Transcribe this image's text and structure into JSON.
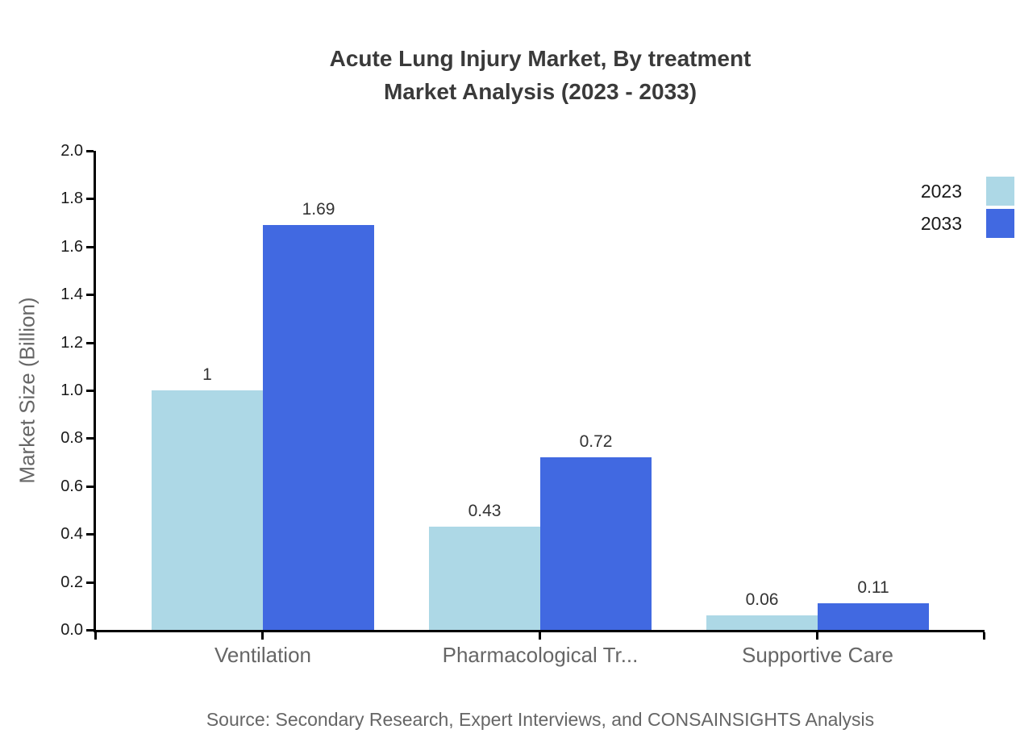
{
  "title": {
    "line1": "Acute Lung Injury Market, By treatment",
    "line2": "Market Analysis (2023 - 2033)"
  },
  "chart_data": {
    "type": "bar",
    "title": "Acute Lung Injury Market, By treatment Market Analysis (2023 - 2033)",
    "categories": [
      "Ventilation",
      "Pharmacological Tr...",
      "Supportive Care"
    ],
    "series": [
      {
        "name": "2023",
        "color": "#ADD8E6",
        "values": [
          1,
          0.43,
          0.06
        ],
        "labels": [
          "1",
          "0.43",
          "0.06"
        ]
      },
      {
        "name": "2033",
        "color": "#4169E1",
        "values": [
          1.69,
          0.72,
          0.11
        ],
        "labels": [
          "1.69",
          "0.72",
          "0.11"
        ]
      }
    ],
    "xlabel": "",
    "ylabel": "Market Size (Billion)",
    "ylim": [
      0,
      2
    ],
    "yticks": [
      "0.0",
      "0.2",
      "0.4",
      "0.6",
      "0.8",
      "1.0",
      "1.2",
      "1.4",
      "1.6",
      "1.8",
      "2.0"
    ],
    "grid": false,
    "legend_position": "top-right",
    "axis_color": "#000000",
    "text_colors": {
      "title": "#3a3a3a",
      "tick_labels": "#1a1a1a",
      "value_labels": "#333333",
      "category_labels": "#666666",
      "source": "#666666"
    }
  },
  "source": "Source: Secondary Research, Expert Interviews, and CONSAINSIGHTS Analysis"
}
